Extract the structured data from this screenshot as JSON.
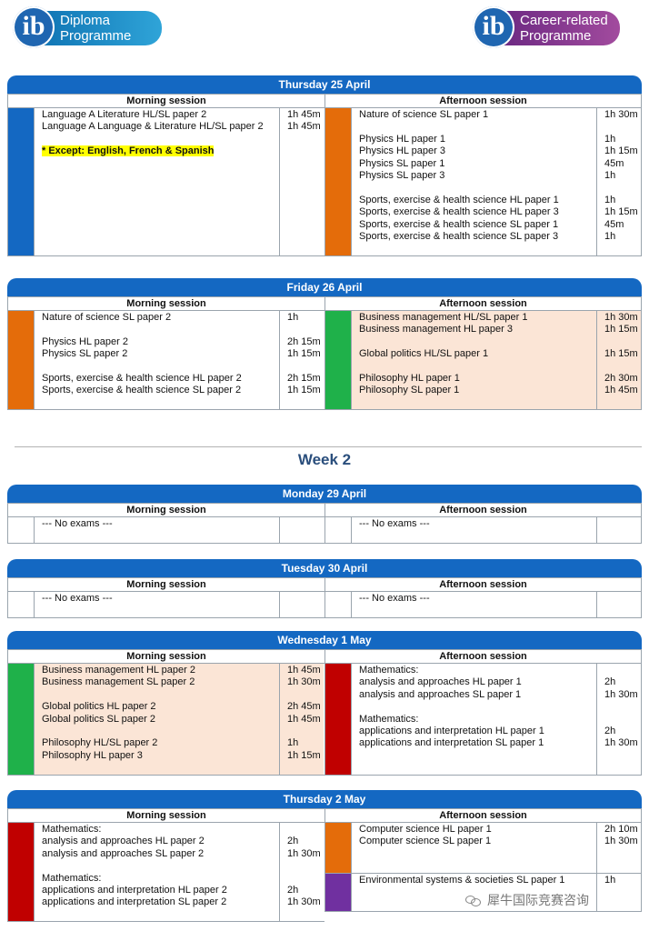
{
  "logos": {
    "dp": {
      "mark": "ib",
      "text_line1": "Diploma",
      "text_line2": "Programme"
    },
    "cp": {
      "mark": "ib",
      "text_line1": "Career-related",
      "text_line2": "Programme"
    }
  },
  "colors": {
    "header": "#1468c2",
    "blue": "#1468c2",
    "orange": "#e46c0a",
    "green": "#1fb14a",
    "red": "#c00000",
    "purple": "#7030a0",
    "tint": "#fbe5d6"
  },
  "week_heading": "Week 2",
  "days": [
    {
      "title": "Thursday 25 April",
      "morning_title": "Morning session",
      "afternoon_title": "Afternoon session",
      "morning": [
        {
          "color": "blue",
          "lines": [
            {
              "subject": "Language A Literature HL/SL paper 2",
              "time": "1h 45m"
            },
            {
              "subject": "Language A Language & Literature HL/SL paper 2",
              "time": "1h 45m"
            },
            {
              "subject": "",
              "time": ""
            },
            {
              "subject": "* Except: English, French & Spanish",
              "time": "",
              "highlight": true
            },
            {
              "subject": "",
              "time": ""
            },
            {
              "subject": "",
              "time": ""
            },
            {
              "subject": "",
              "time": ""
            },
            {
              "subject": "",
              "time": ""
            },
            {
              "subject": "",
              "time": ""
            },
            {
              "subject": "",
              "time": ""
            },
            {
              "subject": "",
              "time": ""
            },
            {
              "subject": "",
              "time": ""
            }
          ]
        }
      ],
      "afternoon": [
        {
          "color": "orange",
          "lines": [
            {
              "subject": "Nature of science SL paper 1",
              "time": "1h 30m"
            },
            {
              "subject": "",
              "time": ""
            },
            {
              "subject": "Physics HL paper 1",
              "time": "1h"
            },
            {
              "subject": "Physics HL paper 3",
              "time": "1h 15m"
            },
            {
              "subject": "Physics SL paper 1",
              "time": "45m"
            },
            {
              "subject": "Physics SL paper 3",
              "time": "1h"
            },
            {
              "subject": "",
              "time": ""
            },
            {
              "subject": "Sports, exercise & health science HL paper 1",
              "time": "1h"
            },
            {
              "subject": "Sports, exercise & health science HL paper 3",
              "time": "1h 15m"
            },
            {
              "subject": "Sports, exercise & health science SL paper 1",
              "time": "45m"
            },
            {
              "subject": "Sports, exercise & health science SL paper 3",
              "time": "1h"
            },
            {
              "subject": "",
              "time": ""
            }
          ]
        }
      ]
    },
    {
      "title": "Friday 26 April",
      "morning_title": "Morning session",
      "afternoon_title": "Afternoon session",
      "morning": [
        {
          "color": "orange",
          "lines": [
            {
              "subject": "Nature of science SL paper 2",
              "time": "1h"
            },
            {
              "subject": "",
              "time": ""
            },
            {
              "subject": "Physics HL paper 2",
              "time": "2h 15m"
            },
            {
              "subject": "Physics SL paper 2",
              "time": "1h 15m"
            },
            {
              "subject": "",
              "time": ""
            },
            {
              "subject": "Sports, exercise & health science HL paper 2",
              "time": "2h 15m"
            },
            {
              "subject": "Sports, exercise & health science SL paper 2",
              "time": "1h 15m"
            },
            {
              "subject": "",
              "time": ""
            }
          ]
        }
      ],
      "afternoon": [
        {
          "color": "green",
          "tinted": true,
          "lines": [
            {
              "subject": "Business management HL/SL paper 1",
              "time": "1h 30m"
            },
            {
              "subject": "Business management HL paper 3",
              "time": "1h 15m"
            },
            {
              "subject": "",
              "time": ""
            },
            {
              "subject": "Global politics HL/SL paper 1",
              "time": "1h 15m"
            },
            {
              "subject": "",
              "time": ""
            },
            {
              "subject": "Philosophy HL paper 1",
              "time": "2h 30m"
            },
            {
              "subject": "Philosophy SL paper 1",
              "time": "1h 45m"
            },
            {
              "subject": "",
              "time": ""
            }
          ]
        }
      ]
    },
    {
      "title": "Monday 29 April",
      "morning_title": "Morning session",
      "afternoon_title": "Afternoon session",
      "morning": [
        {
          "color": "none",
          "lines": [
            {
              "subject": "--- No exams ---",
              "time": ""
            },
            {
              "subject": "",
              "time": ""
            }
          ]
        }
      ],
      "afternoon": [
        {
          "color": "none",
          "lines": [
            {
              "subject": "--- No exams ---",
              "time": ""
            },
            {
              "subject": "",
              "time": ""
            }
          ]
        }
      ]
    },
    {
      "title": "Tuesday 30 April",
      "morning_title": "Morning session",
      "afternoon_title": "Afternoon session",
      "morning": [
        {
          "color": "none",
          "lines": [
            {
              "subject": "--- No exams ---",
              "time": ""
            },
            {
              "subject": "",
              "time": ""
            }
          ]
        }
      ],
      "afternoon": [
        {
          "color": "none",
          "lines": [
            {
              "subject": "--- No exams ---",
              "time": ""
            },
            {
              "subject": "",
              "time": ""
            }
          ]
        }
      ]
    },
    {
      "title": "Wednesday 1 May",
      "morning_title": "Morning session",
      "afternoon_title": "Afternoon session",
      "morning": [
        {
          "color": "green",
          "tinted": true,
          "lines": [
            {
              "subject": "Business management HL paper 2",
              "time": "1h 45m"
            },
            {
              "subject": "Business management SL paper 2",
              "time": "1h 30m"
            },
            {
              "subject": "",
              "time": ""
            },
            {
              "subject": "Global politics HL paper 2",
              "time": "2h 45m"
            },
            {
              "subject": "Global politics SL paper 2",
              "time": "1h 45m"
            },
            {
              "subject": "",
              "time": ""
            },
            {
              "subject": "Philosophy HL/SL paper 2",
              "time": "1h"
            },
            {
              "subject": "Philosophy HL paper 3",
              "time": "1h 15m"
            },
            {
              "subject": "",
              "time": ""
            }
          ]
        }
      ],
      "afternoon": [
        {
          "color": "red",
          "lines": [
            {
              "subject": "Mathematics:",
              "time": ""
            },
            {
              "subject": "analysis and approaches HL paper 1",
              "time": "2h"
            },
            {
              "subject": "analysis and approaches SL paper 1",
              "time": "1h 30m"
            },
            {
              "subject": "",
              "time": ""
            },
            {
              "subject": "Mathematics:",
              "time": ""
            },
            {
              "subject": "applications and interpretation HL paper 1",
              "time": "2h"
            },
            {
              "subject": "applications and interpretation SL paper 1",
              "time": "1h 30m"
            },
            {
              "subject": "",
              "time": ""
            },
            {
              "subject": "",
              "time": ""
            }
          ]
        }
      ]
    },
    {
      "title": "Thursday 2 May",
      "morning_title": "Morning session",
      "afternoon_title": "Afternoon session",
      "morning": [
        {
          "color": "red",
          "lines": [
            {
              "subject": "Mathematics:",
              "time": ""
            },
            {
              "subject": "analysis and approaches HL paper 2",
              "time": "2h"
            },
            {
              "subject": "analysis and approaches SL paper 2",
              "time": "1h 30m"
            },
            {
              "subject": "",
              "time": ""
            },
            {
              "subject": "Mathematics:",
              "time": ""
            },
            {
              "subject": "applications and interpretation HL paper 2",
              "time": "2h"
            },
            {
              "subject": "applications and interpretation SL paper 2",
              "time": "1h 30m"
            },
            {
              "subject": "",
              "time": ""
            }
          ]
        }
      ],
      "afternoon": [
        {
          "color": "orange",
          "lines": [
            {
              "subject": "Computer science HL paper 1",
              "time": "2h 10m"
            },
            {
              "subject": "Computer science SL paper 1",
              "time": "1h 30m"
            },
            {
              "subject": "",
              "time": ""
            },
            {
              "subject": "",
              "time": ""
            }
          ]
        },
        {
          "color": "purple",
          "lines": [
            {
              "subject": "Environmental systems & societies SL paper 1",
              "time": "1h"
            },
            {
              "subject": "",
              "time": ""
            },
            {
              "subject": "",
              "time": ""
            }
          ]
        }
      ]
    }
  ],
  "watermark": "犀牛国际竞赛咨询"
}
